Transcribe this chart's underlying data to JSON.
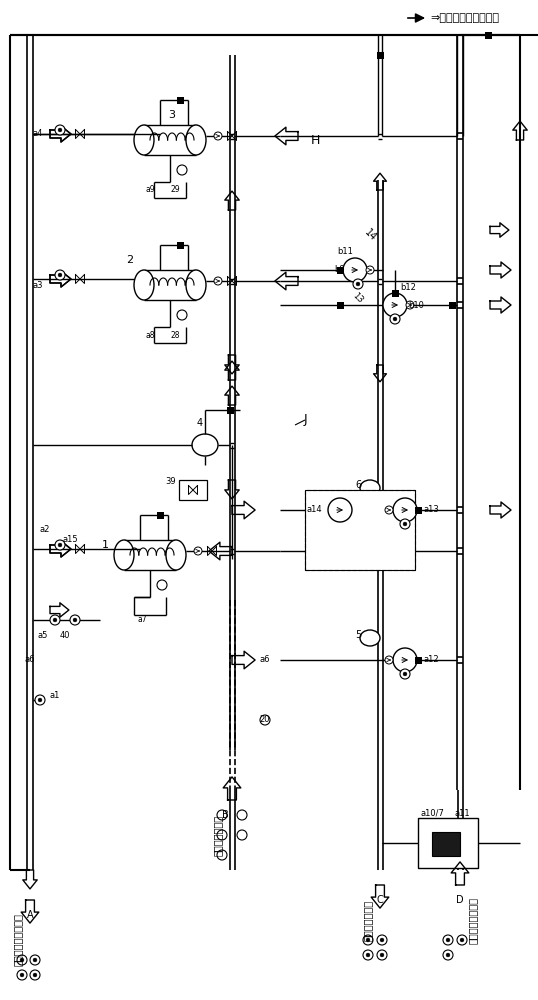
{
  "bg_color": "#ffffff",
  "top_label": "⇒向车间热水供水方向",
  "label_A": "自厂区蒸气供给方向",
  "label_B": "高温水供水方向",
  "label_C": "高温水回水方向",
  "label_D": "至锅炉化水间方向",
  "figsize": [
    5.38,
    10.0
  ],
  "dpi": 100
}
